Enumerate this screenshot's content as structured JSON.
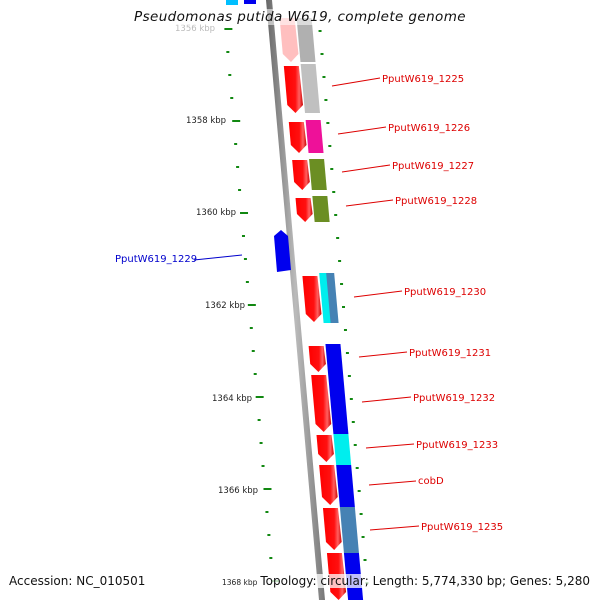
{
  "title": "Pseudomonas putida W619, complete genome",
  "accession_text": "Accession: NC_010501",
  "topology_text": "Topology: circular; Length: 5,774,330 bp; Genes: 5,280",
  "colors": {
    "forward_label": "#dd0000",
    "reverse_label": "#0000cc",
    "tick": "#118811",
    "backbone": "#888888"
  },
  "scale_ticks": [
    {
      "label": "1356 kbp",
      "faded": true
    },
    {
      "label": "1358 kbp",
      "faded": false
    },
    {
      "label": "1360 kbp",
      "faded": false
    },
    {
      "label": "1362 kbp",
      "faded": false
    },
    {
      "label": "1364 kbp",
      "faded": false
    },
    {
      "label": "1366 kbp",
      "faded": false
    },
    {
      "label": "1368 kbp",
      "faded": false
    }
  ],
  "gene_labels": [
    {
      "name": "PputW619_1225",
      "strand": "forward"
    },
    {
      "name": "PputW619_1226",
      "strand": "forward"
    },
    {
      "name": "PputW619_1227",
      "strand": "forward"
    },
    {
      "name": "PputW619_1228",
      "strand": "forward"
    },
    {
      "name": "PputW619_1229",
      "strand": "reverse"
    },
    {
      "name": "PputW619_1230",
      "strand": "forward"
    },
    {
      "name": "PputW619_1231",
      "strand": "forward"
    },
    {
      "name": "PputW619_1232",
      "strand": "forward"
    },
    {
      "name": "PputW619_1233",
      "strand": "forward"
    },
    {
      "name": "cobD",
      "strand": "forward"
    },
    {
      "name": "PputW619_1235",
      "strand": "forward"
    }
  ],
  "cog_colors": [
    "#707070",
    "#c0c0c0",
    "#ee1199",
    "#6b8e23",
    "#00eeee",
    "#4682b4",
    "#0000ee",
    "#00bfff"
  ]
}
